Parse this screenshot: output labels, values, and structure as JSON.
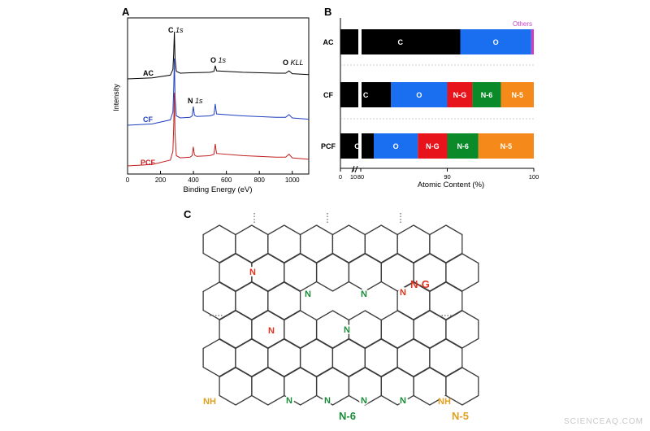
{
  "watermark": "SCIENCEAQ.COM",
  "panels": {
    "a": {
      "letter": "A"
    },
    "b": {
      "letter": "B"
    },
    "c": {
      "letter": "C"
    }
  },
  "chart_data": [
    {
      "panel": "A",
      "type": "line",
      "xlabel": "Binding Energy (eV)",
      "ylabel": "Intensity",
      "xlim": [
        0,
        1100
      ],
      "xticks": [
        0,
        200,
        400,
        600,
        800,
        1000
      ],
      "peak_labels": [
        {
          "text": "C 1s",
          "x": 284
        },
        {
          "text": "O 1s",
          "x": 532
        },
        {
          "text": "O KLL",
          "x": 980
        },
        {
          "text": "N 1s",
          "x": 399
        }
      ],
      "series": [
        {
          "name": "AC",
          "color": "#000000",
          "x": [
            0,
            150,
            260,
            275,
            280,
            284,
            288,
            296,
            320,
            380,
            500,
            525,
            532,
            540,
            700,
            900,
            960,
            980,
            1000,
            1100
          ],
          "y": [
            0.0,
            0.02,
            0.08,
            0.2,
            0.55,
            1.0,
            0.45,
            0.16,
            0.12,
            0.13,
            0.14,
            0.16,
            0.28,
            0.17,
            0.14,
            0.12,
            0.12,
            0.17,
            0.11,
            0.09
          ]
        },
        {
          "name": "CF",
          "color": "#1f3fbf",
          "x": [
            0,
            150,
            260,
            275,
            280,
            284,
            288,
            296,
            320,
            380,
            392,
            399,
            406,
            420,
            500,
            525,
            532,
            540,
            700,
            900,
            960,
            980,
            1000,
            1100
          ],
          "y": [
            0.0,
            0.02,
            0.08,
            0.2,
            0.55,
            1.0,
            0.45,
            0.14,
            0.11,
            0.12,
            0.14,
            0.28,
            0.15,
            0.13,
            0.14,
            0.16,
            0.32,
            0.17,
            0.14,
            0.12,
            0.12,
            0.16,
            0.11,
            0.09
          ]
        },
        {
          "name": "PCF",
          "color": "#c0201e",
          "x": [
            0,
            150,
            260,
            275,
            280,
            284,
            288,
            296,
            320,
            380,
            392,
            399,
            406,
            420,
            500,
            525,
            532,
            540,
            700,
            900,
            960,
            980,
            1000,
            1100
          ],
          "y": [
            0.0,
            0.02,
            0.08,
            0.2,
            0.55,
            1.0,
            0.45,
            0.14,
            0.11,
            0.12,
            0.14,
            0.26,
            0.15,
            0.13,
            0.14,
            0.16,
            0.3,
            0.17,
            0.14,
            0.12,
            0.12,
            0.16,
            0.11,
            0.09
          ]
        }
      ]
    },
    {
      "panel": "B",
      "type": "bar",
      "orientation": "horizontal",
      "stacked": true,
      "xlabel": "Atomic Content (%)",
      "xlim": [
        0,
        100
      ],
      "axis_break": "after 10",
      "xticks": [
        0,
        10,
        80,
        90,
        100
      ],
      "categories": [
        "AC",
        "CF",
        "PCF"
      ],
      "legend_note": "Others",
      "series": [
        {
          "name": "C",
          "color": "#000000",
          "values": [
            91.5,
            83.5,
            81.5
          ]
        },
        {
          "name": "O",
          "color": "#1a6ef0",
          "values": [
            8.2,
            6.5,
            5.1
          ]
        },
        {
          "name": "N-G",
          "color": "#e8141c",
          "values": [
            0,
            2.9,
            3.4
          ]
        },
        {
          "name": "N-6",
          "color": "#0b8a2a",
          "values": [
            0,
            3.3,
            3.6
          ]
        },
        {
          "name": "N-5",
          "color": "#f58a1a",
          "values": [
            0,
            3.8,
            6.4
          ]
        },
        {
          "name": "Others",
          "color": "#c63fc6",
          "values": [
            0.3,
            0,
            0
          ]
        }
      ]
    }
  ],
  "structure": {
    "labels": {
      "ng": "N-G",
      "n6": "N-6",
      "n5": "N-5",
      "n": "N",
      "nh": "NH"
    },
    "colors": {
      "bond": "#3a3a3a",
      "graphitic_n": "#e0341e",
      "pyridinic_n": "#1a8a3a",
      "pyrrolic_n": "#e0a020"
    }
  }
}
